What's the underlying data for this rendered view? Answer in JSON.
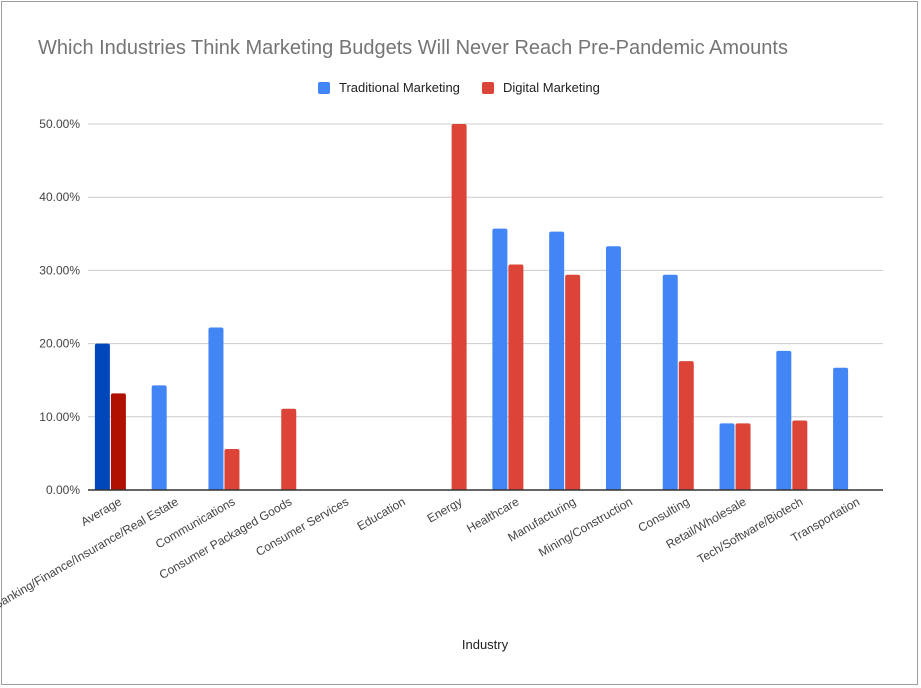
{
  "chart_data": {
    "type": "bar",
    "title": "Which Industries Think Marketing Budgets Will Never Reach Pre-Pandemic Amounts",
    "xlabel": "Industry",
    "ylabel": "",
    "ylim": [
      0,
      50
    ],
    "yticks": [
      "0.00%",
      "10.00%",
      "20.00%",
      "30.00%",
      "40.00%",
      "50.00%"
    ],
    "grid": true,
    "legend_position": "top",
    "categories": [
      "Average",
      "Banking/Finance/Insurance/Real Estate",
      "Communications",
      "Consumer Packaged Goods",
      "Consumer Services",
      "Education",
      "Energy",
      "Healthcare",
      "Manufacturing",
      "Mining/Construction",
      "Consulting",
      "Retail/Wholesale",
      "Tech/Software/Biotech",
      "Transportation"
    ],
    "series": [
      {
        "name": "Traditional Marketing",
        "color": "#4285f4",
        "highlight_color": "#0047bb",
        "values": [
          20.0,
          14.3,
          22.2,
          0,
          0,
          0,
          0,
          35.7,
          35.3,
          33.3,
          29.4,
          9.1,
          19.0,
          16.7
        ]
      },
      {
        "name": "Digital Marketing",
        "color": "#db4437",
        "highlight_color": "#b01000",
        "values": [
          13.2,
          0,
          5.6,
          11.1,
          0,
          0,
          50.0,
          30.8,
          29.4,
          0,
          17.6,
          9.1,
          9.5,
          0
        ]
      }
    ]
  }
}
